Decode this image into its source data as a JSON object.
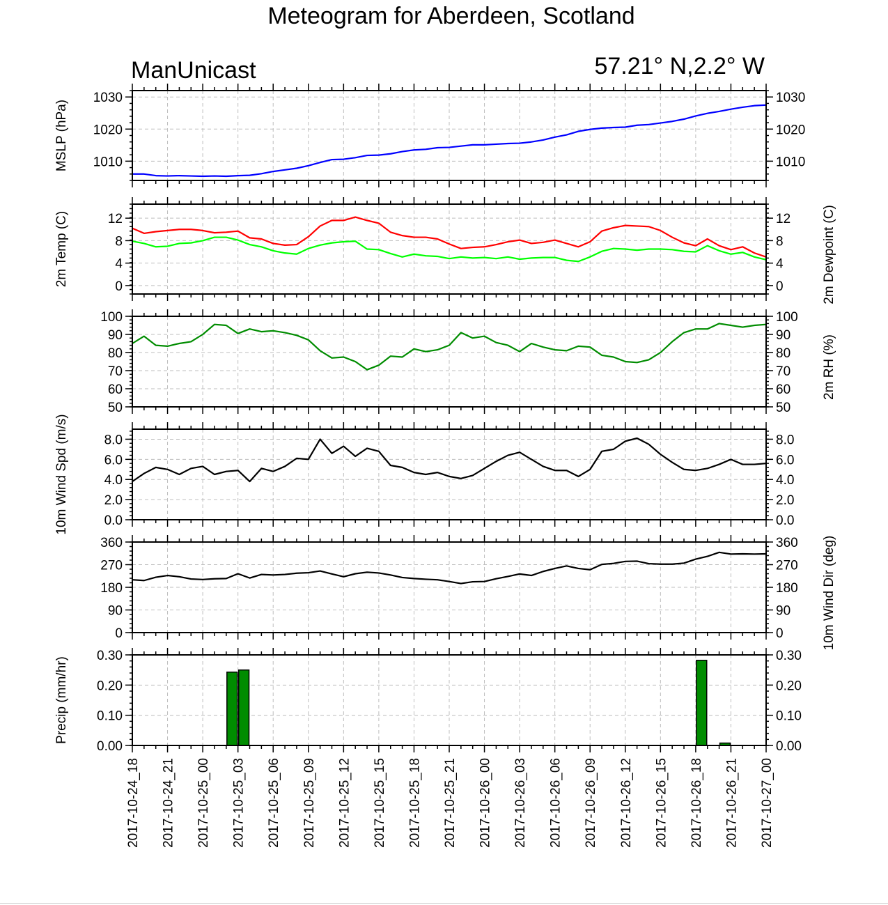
{
  "title": "Meteogram for Aberdeen, Scotland",
  "model": "ManUnicast",
  "location": "57.21° N,2.2° W",
  "colors": {
    "mslp": "#0000ff",
    "temp": "#ff0000",
    "dewpoint": "#00ff00",
    "rh": "#008c00",
    "wind": "#000000",
    "precip_fill": "#008c00",
    "grid": "#bdbdbd"
  },
  "chart_data": {
    "type": "line",
    "x_labels": [
      "2017-10-24_18",
      "2017-10-24_21",
      "2017-10-25_00",
      "2017-10-25_03",
      "2017-10-25_06",
      "2017-10-25_09",
      "2017-10-25_12",
      "2017-10-25_15",
      "2017-10-25_18",
      "2017-10-25_21",
      "2017-10-26_00",
      "2017-10-26_03",
      "2017-10-26_06",
      "2017-10-26_09",
      "2017-10-26_12",
      "2017-10-26_15",
      "2017-10-26_18",
      "2017-10-26_21",
      "2017-10-27_00"
    ],
    "x_range_hours": [
      0,
      54
    ],
    "time_step_hours": 1,
    "panels": [
      {
        "id": "mslp",
        "type": "line",
        "ylabel": "MSLP (hPa)",
        "ylabel_right": "",
        "ylim": [
          1004,
          1032
        ],
        "yticks": [
          1010,
          1020,
          1030
        ],
        "ytick_labels": [
          "1010",
          "1020",
          "1030"
        ],
        "series": [
          {
            "name": "",
            "color": "#0000ff",
            "values": [
              1006,
              1006,
              1005.5,
              1005.4,
              1005.5,
              1005.4,
              1005.3,
              1005.4,
              1005.3,
              1005.5,
              1005.6,
              1006.1,
              1006.8,
              1007.3,
              1007.8,
              1008.6,
              1009.6,
              1010.5,
              1010.6,
              1011.1,
              1011.8,
              1011.9,
              1012.3,
              1013,
              1013.5,
              1013.7,
              1014.2,
              1014.3,
              1014.7,
              1015.1,
              1015.1,
              1015.3,
              1015.5,
              1015.6,
              1016,
              1016.6,
              1017.5,
              1018.2,
              1019.3,
              1019.9,
              1020.3,
              1020.5,
              1020.6,
              1021.2,
              1021.4,
              1021.9,
              1022.4,
              1023.1,
              1024.1,
              1024.9,
              1025.5,
              1026.2,
              1026.8,
              1027.3,
              1027.5
            ]
          }
        ]
      },
      {
        "id": "temperature",
        "type": "line",
        "ylabel": "2m Temp (C)",
        "ylabel_right": "2m Dewpoint (C)",
        "ylim": [
          -1.5,
          14.5
        ],
        "yticks": [
          0,
          4,
          8,
          12
        ],
        "ytick_labels": [
          "0",
          "4",
          "8",
          "12"
        ],
        "series": [
          {
            "name": "",
            "color": "#ff0000",
            "values": [
              10.2,
              9.3,
              9.6,
              9.8,
              10,
              10,
              9.8,
              9.4,
              9.5,
              9.7,
              8.5,
              8.3,
              7.5,
              7.2,
              7.3,
              8.7,
              10.6,
              11.6,
              11.6,
              12.2,
              11.6,
              11.1,
              9.5,
              8.9,
              8.6,
              8.6,
              8.3,
              7.4,
              6.6,
              6.8,
              6.9,
              7.3,
              7.8,
              8.1,
              7.5,
              7.7,
              8.1,
              7.5,
              6.9,
              7.8,
              9.7,
              10.3,
              10.7,
              10.6,
              10.5,
              9.8,
              8.6,
              7.6,
              7.1,
              8.3,
              7.1,
              6.4,
              6.9,
              5.8,
              5.1
            ]
          },
          {
            "name": "",
            "color": "#00ff00",
            "values": [
              7.9,
              7.5,
              6.9,
              7,
              7.5,
              7.6,
              8,
              8.6,
              8.6,
              8.1,
              7.3,
              6.9,
              6.2,
              5.8,
              5.6,
              6.6,
              7.2,
              7.6,
              7.8,
              7.9,
              6.5,
              6.4,
              5.7,
              5.1,
              5.6,
              5.3,
              5.2,
              4.8,
              5.1,
              4.9,
              5,
              4.8,
              5.1,
              4.7,
              4.9,
              5,
              5,
              4.5,
              4.3,
              5.1,
              6.1,
              6.6,
              6.5,
              6.3,
              6.5,
              6.5,
              6.4,
              6.1,
              6,
              7.1,
              6.2,
              5.6,
              5.9,
              5.1,
              4.6
            ]
          }
        ]
      },
      {
        "id": "rh",
        "type": "line",
        "ylabel": "",
        "ylabel_right": "2m RH (%)",
        "ylim": [
          50,
          100
        ],
        "yticks": [
          50,
          60,
          70,
          80,
          90,
          100
        ],
        "ytick_labels": [
          "50",
          "60",
          "70",
          "80",
          "90",
          "100"
        ],
        "series": [
          {
            "name": "",
            "color": "#008c00",
            "values": [
              85,
              89,
              84,
              83.5,
              85,
              86,
              90,
              95.5,
              95,
              90.5,
              93,
              91.5,
              92,
              91,
              89.5,
              87,
              81,
              77,
              77.5,
              75,
              70.5,
              73,
              78,
              77.5,
              82,
              80.5,
              81.5,
              84,
              91,
              88,
              89,
              85.5,
              84,
              80.5,
              85,
              83,
              81.5,
              81,
              83.5,
              83,
              78.5,
              77.5,
              75,
              74.5,
              76,
              80,
              86,
              91,
              93,
              93,
              96,
              95,
              94,
              95,
              95.5
            ]
          }
        ]
      },
      {
        "id": "wind_speed",
        "type": "line",
        "ylabel": "10m Wind Spd (m/s)",
        "ylabel_right": "",
        "ylim": [
          0,
          9
        ],
        "yticks": [
          0,
          2,
          4,
          6,
          8
        ],
        "ytick_labels": [
          "0.0",
          "2.0",
          "4.0",
          "6.0",
          "8.0"
        ],
        "series": [
          {
            "name": "",
            "color": "#000000",
            "values": [
              3.8,
              4.6,
              5.2,
              5,
              4.5,
              5.1,
              5.3,
              4.5,
              4.8,
              4.9,
              3.8,
              5.1,
              4.8,
              5.3,
              6.1,
              6,
              8,
              6.6,
              7.3,
              6.3,
              7.1,
              6.8,
              5.4,
              5.2,
              4.7,
              4.5,
              4.7,
              4.3,
              4.1,
              4.4,
              5.1,
              5.8,
              6.4,
              6.7,
              6,
              5.3,
              4.9,
              4.9,
              4.3,
              5,
              6.8,
              7,
              7.8,
              8.1,
              7.5,
              6.5,
              5.7,
              5,
              4.9,
              5.1,
              5.5,
              6,
              5.5,
              5.5,
              5.6
            ]
          }
        ]
      },
      {
        "id": "wind_dir",
        "type": "line",
        "ylabel": "",
        "ylabel_right": "10m Wind Dir (deg)",
        "ylim": [
          0,
          360
        ],
        "yticks": [
          0,
          90,
          180,
          270,
          360
        ],
        "ytick_labels": [
          "0",
          "90",
          "180",
          "270",
          "360"
        ],
        "series": [
          {
            "name": "",
            "color": "#000000",
            "values": [
              210,
              207,
              220,
              227,
              222,
              213,
              211,
              214,
              215,
              234,
              217,
              231,
              229,
              231,
              236,
              238,
              245,
              233,
              222,
              234,
              240,
              237,
              229,
              219,
              215,
              212,
              210,
              203,
              195,
              202,
              203,
              214,
              223,
              233,
              227,
              243,
              255,
              265,
              255,
              250,
              271,
              275,
              283,
              284,
              274,
              272,
              272,
              276,
              292,
              303,
              319,
              312,
              313,
              312,
              313
            ]
          }
        ]
      },
      {
        "id": "precip",
        "type": "bar",
        "ylabel": "Precip (mm/hr)",
        "ylabel_right": "",
        "ylim": [
          0,
          0.3
        ],
        "yticks": [
          0,
          0.1,
          0.2,
          0.3
        ],
        "ytick_labels": [
          "0.00",
          "0.10",
          "0.20",
          "0.30"
        ],
        "bars": [
          {
            "hour": 8.5,
            "value": 0.243
          },
          {
            "hour": 9.5,
            "value": 0.25
          },
          {
            "hour": 48.5,
            "value": 0.282
          },
          {
            "hour": 50.5,
            "value": 0.008
          }
        ]
      }
    ]
  }
}
